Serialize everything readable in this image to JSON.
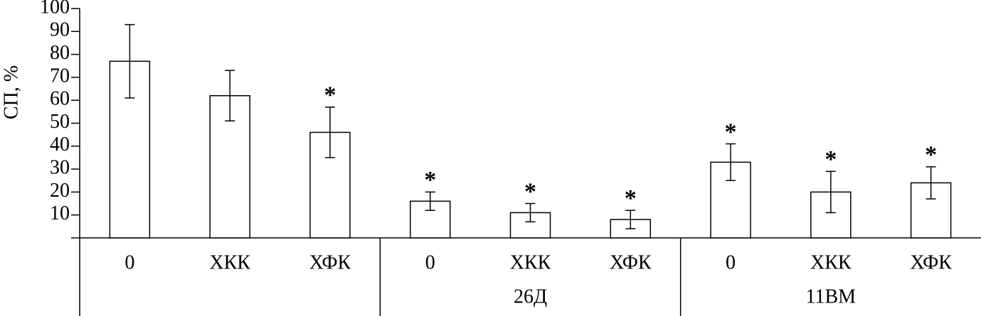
{
  "chart_data": {
    "type": "bar",
    "y_label": "СП, %",
    "categories": [
      "0",
      "ХКК",
      "ХФК",
      "0",
      "ХКК",
      "ХФК",
      "0",
      "ХКК",
      "ХФК"
    ],
    "groups": [
      null,
      "26Д",
      "11ВМ"
    ],
    "series": [
      {
        "color": "#ffffff",
        "values": [
          77,
          62,
          46,
          16,
          11,
          8,
          33,
          20,
          24
        ],
        "errors": [
          16,
          11,
          11,
          4,
          4,
          4,
          8,
          9,
          7
        ]
      }
    ],
    "significance": [
      null,
      null,
      "*",
      "*",
      "*",
      "*",
      "*",
      "*",
      "*"
    ],
    "ylim": [
      0,
      100
    ],
    "yticks": [
      10,
      20,
      30,
      40,
      50,
      60,
      70,
      80,
      90,
      100
    ]
  }
}
